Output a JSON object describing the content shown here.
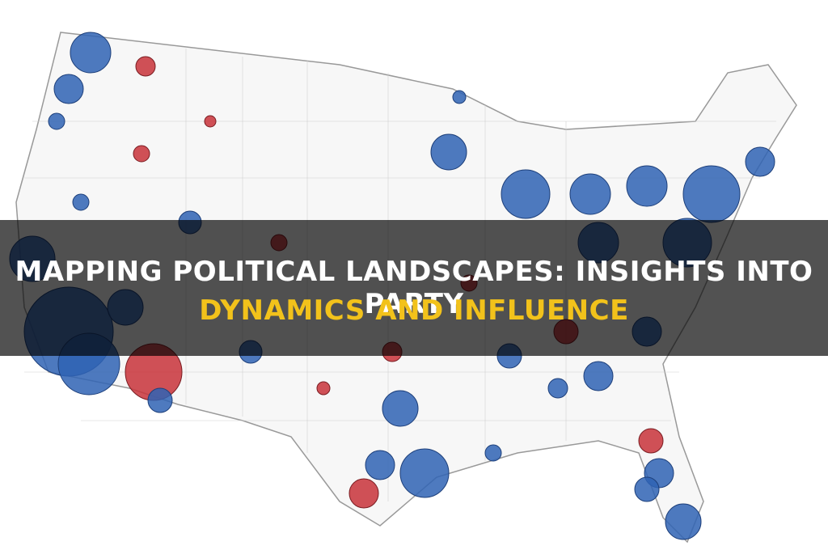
{
  "header": {
    "title_line_1": "MAPPING POLITICAL LANDSCAPES: INSIGHTS INTO PARTY",
    "title_line_2": "DYNAMICS AND INFLUENCE"
  }
}
